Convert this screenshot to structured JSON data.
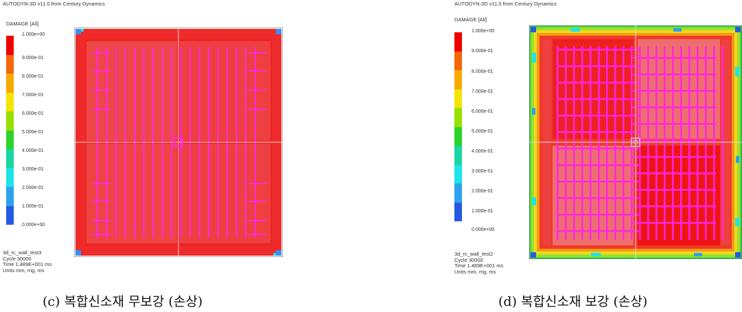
{
  "panels": [
    {
      "header": "AUTODYN-3D v11.0 from Century Dynamics",
      "legend_title": "DAMAGE [All]",
      "legend_ticks": [
        "1.000e+00",
        "9.000e-01",
        "8.000e-01",
        "7.000e-01",
        "6.000e-01",
        "5.000e-01",
        "4.000e-01",
        "3.000e-01",
        "2.000e-01",
        "1.000e-01",
        "0.000e+00"
      ],
      "info": [
        "3d_rc_wall_test3",
        "Cycle 30000",
        "Time 1.489E+001 ms",
        "Units mm, mg, ms"
      ],
      "caption": "(c) 복합신소재 무보강 (손상)"
    },
    {
      "header": "AUTODYN-3D v11.0 from Century Dynamics",
      "legend_title": "DAMAGE [All]",
      "legend_ticks": [
        "1.000e+00",
        "9.000e-01",
        "8.000e-01",
        "7.000e-01",
        "6.000e-01",
        "5.000e-01",
        "4.000e-01",
        "3.000e-01",
        "2.000e-01",
        "1.000e-01",
        "0.000e+00"
      ],
      "info": [
        "3d_rc_wall_test2",
        "Cycle 30000",
        "Time 1.489E+001 ms",
        "Units mm, mg, ms"
      ],
      "caption": "(d) 복합신소재 보강 (손상)"
    }
  ],
  "colors": {
    "legend_bands": [
      "#ef0000",
      "#f4660a",
      "#f9a800",
      "#f4e400",
      "#99e000",
      "#2bd42b",
      "#1ad6a2",
      "#1ee4e8",
      "#2ca2ee",
      "#2659e4",
      "#0000cc"
    ],
    "damage_red": "#ef1c1c",
    "damage_light": "#ee6e6e",
    "rebar_magenta": "#ff26e4"
  }
}
